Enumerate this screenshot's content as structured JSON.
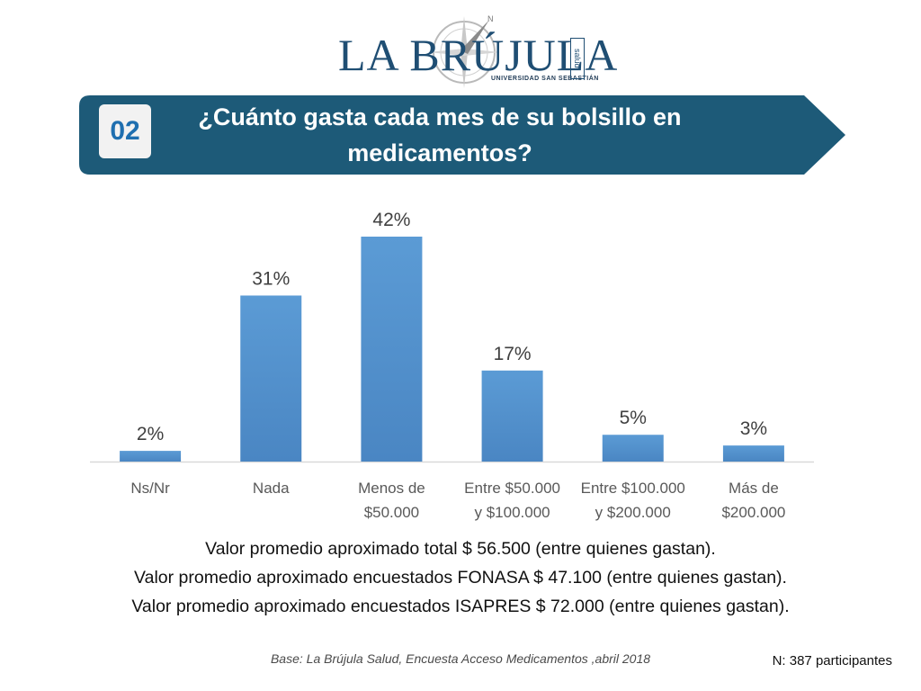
{
  "logo": {
    "brand": "LA BRÚJULA",
    "tagline": "UNIVERSIDAD SAN SEBASTIÁN",
    "side": "salud"
  },
  "question": {
    "number": "02",
    "title": "¿Cuánto gasta cada mes de su bolsillo en medicamentos?"
  },
  "colors": {
    "banner": "#1d5a78",
    "bar": "#5b9bd5",
    "bar_dark": "#4a86c3"
  },
  "chart_data": {
    "type": "bar",
    "categories": [
      [
        "Ns/Nr"
      ],
      [
        "Nada"
      ],
      [
        "Menos de",
        "$50.000"
      ],
      [
        "Entre $50.000",
        "y $100.000"
      ],
      [
        "Entre $100.000",
        "y $200.000"
      ],
      [
        "Más de",
        "$200.000"
      ]
    ],
    "values": [
      2,
      31,
      42,
      17,
      5,
      3
    ],
    "data_labels": [
      "2%",
      "31%",
      "42%",
      "17%",
      "5%",
      "3%"
    ],
    "ylim": [
      0,
      42
    ],
    "grid": false,
    "legend": "none"
  },
  "notes": [
    "Valor promedio aproximado total $ 56.500 (entre quienes gastan).",
    "Valor promedio aproximado encuestados FONASA  $ 47.100 (entre quienes gastan).",
    "Valor promedio aproximado encuestados ISAPRES  $ 72.000 (entre quienes gastan)."
  ],
  "source": "Base: La Brújula Salud, Encuesta Acceso Medicamentos ,abril 2018",
  "sample": "N: 387 participantes"
}
